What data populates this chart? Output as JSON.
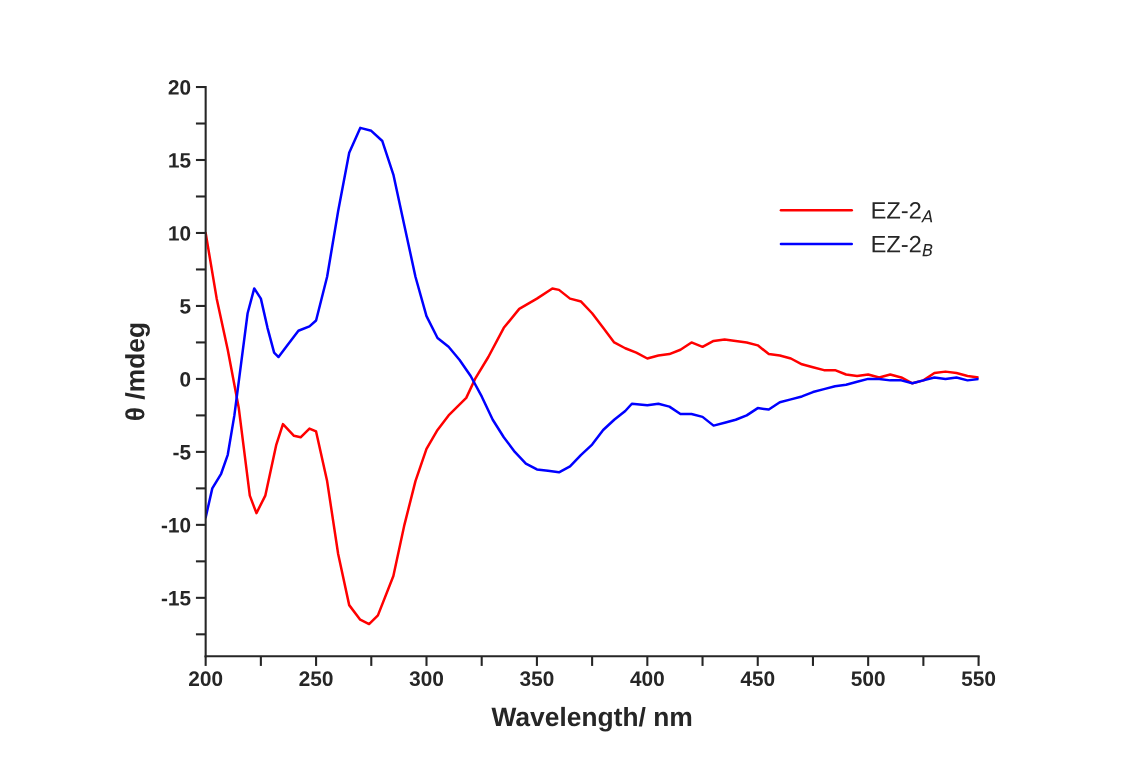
{
  "chart_data": {
    "type": "line",
    "xlabel": "Wavelength/ nm",
    "ylabel": "θ /mdeg",
    "xlim": [
      200,
      550
    ],
    "ylim": [
      -19,
      20
    ],
    "xticks": [
      200,
      {
        "value": 225,
        "label": null
      },
      250,
      {
        "value": 275,
        "label": null
      },
      300,
      {
        "value": 325,
        "label": null
      },
      350,
      {
        "value": 375,
        "label": null
      },
      400,
      {
        "value": 425,
        "label": null
      },
      450,
      {
        "value": 475,
        "label": null
      },
      500,
      {
        "value": 525,
        "label": null
      },
      550
    ],
    "yticks": [
      {
        "value": -17.5,
        "label": null
      },
      -15,
      {
        "value": -12.5,
        "label": null
      },
      -10,
      {
        "value": -7.5,
        "label": null
      },
      -5,
      {
        "value": -2.5,
        "label": null
      },
      0,
      {
        "value": 2.5,
        "label": null
      },
      5,
      {
        "value": 7.5,
        "label": null
      },
      10,
      {
        "value": 12.5,
        "label": null
      },
      15,
      {
        "value": 17.5,
        "label": null
      },
      20
    ],
    "grid": false,
    "legend": "right",
    "line_style": "solid",
    "series": [
      {
        "name": "EZ-2$_{A}$",
        "color": "#ff0000",
        "x": [
          200,
          205,
          210,
          215,
          220,
          223,
          227,
          232,
          235,
          240,
          243,
          247,
          250,
          255,
          260,
          265,
          270,
          274,
          278,
          285,
          290,
          295,
          300,
          305,
          310,
          318,
          322,
          328,
          335,
          342,
          350,
          357,
          360,
          365,
          370,
          375,
          380,
          385,
          390,
          395,
          400,
          405,
          410,
          415,
          420,
          425,
          430,
          435,
          440,
          445,
          450,
          455,
          460,
          465,
          470,
          475,
          480,
          485,
          490,
          495,
          500,
          505,
          510,
          515,
          520,
          525,
          530,
          535,
          540,
          545,
          550
        ],
        "values": [
          10,
          5.5,
          2,
          -2,
          -8,
          -9.2,
          -8,
          -4.5,
          -3.1,
          -3.9,
          -4.0,
          -3.4,
          -3.6,
          -7,
          -12,
          -15.5,
          -16.5,
          -16.8,
          -16.2,
          -13.5,
          -10,
          -7,
          -4.8,
          -3.5,
          -2.5,
          -1.3,
          0,
          1.5,
          3.5,
          4.8,
          5.5,
          6.2,
          6.1,
          5.5,
          5.3,
          4.5,
          3.5,
          2.5,
          2.1,
          1.8,
          1.4,
          1.6,
          1.7,
          2.0,
          2.5,
          2.2,
          2.6,
          2.7,
          2.6,
          2.5,
          2.3,
          1.7,
          1.6,
          1.4,
          1.0,
          0.8,
          0.6,
          0.6,
          0.3,
          0.2,
          0.3,
          0.1,
          0.3,
          0.1,
          -0.3,
          -0.1,
          0.4,
          0.5,
          0.4,
          0.2,
          0.1
        ]
      },
      {
        "name": "EZ-2$_{B}$",
        "color": "#0000ff",
        "x": [
          200,
          203,
          207,
          210,
          213,
          216,
          219,
          222,
          225,
          228,
          231,
          233,
          237,
          242,
          247,
          250,
          255,
          260,
          265,
          270,
          275,
          280,
          285,
          290,
          295,
          300,
          305,
          310,
          315,
          320,
          325,
          330,
          335,
          340,
          345,
          350,
          355,
          360,
          365,
          370,
          375,
          380,
          385,
          390,
          393,
          400,
          405,
          410,
          415,
          420,
          425,
          430,
          435,
          440,
          445,
          450,
          455,
          460,
          465,
          470,
          475,
          480,
          485,
          490,
          495,
          500,
          505,
          510,
          515,
          520,
          525,
          530,
          535,
          540,
          545,
          550
        ],
        "values": [
          -9.5,
          -7.5,
          -6.5,
          -5.2,
          -2.5,
          1,
          4.5,
          6.2,
          5.5,
          3.5,
          1.8,
          1.5,
          2.3,
          3.3,
          3.6,
          4,
          7,
          11.5,
          15.5,
          17.2,
          17,
          16.3,
          14,
          10.5,
          7,
          4.3,
          2.8,
          2.2,
          1.3,
          0.2,
          -1.2,
          -2.8,
          -4,
          -5,
          -5.8,
          -6.2,
          -6.3,
          -6.4,
          -6,
          -5.2,
          -4.5,
          -3.5,
          -2.8,
          -2.2,
          -1.7,
          -1.8,
          -1.7,
          -1.9,
          -2.4,
          -2.4,
          -2.6,
          -3.2,
          -3,
          -2.8,
          -2.5,
          -2,
          -2.1,
          -1.6,
          -1.4,
          -1.2,
          -0.9,
          -0.7,
          -0.5,
          -0.4,
          -0.2,
          0,
          0,
          -0.1,
          -0.1,
          -0.3,
          -0.1,
          0.1,
          0,
          0.1,
          -0.1,
          0
        ]
      }
    ]
  }
}
